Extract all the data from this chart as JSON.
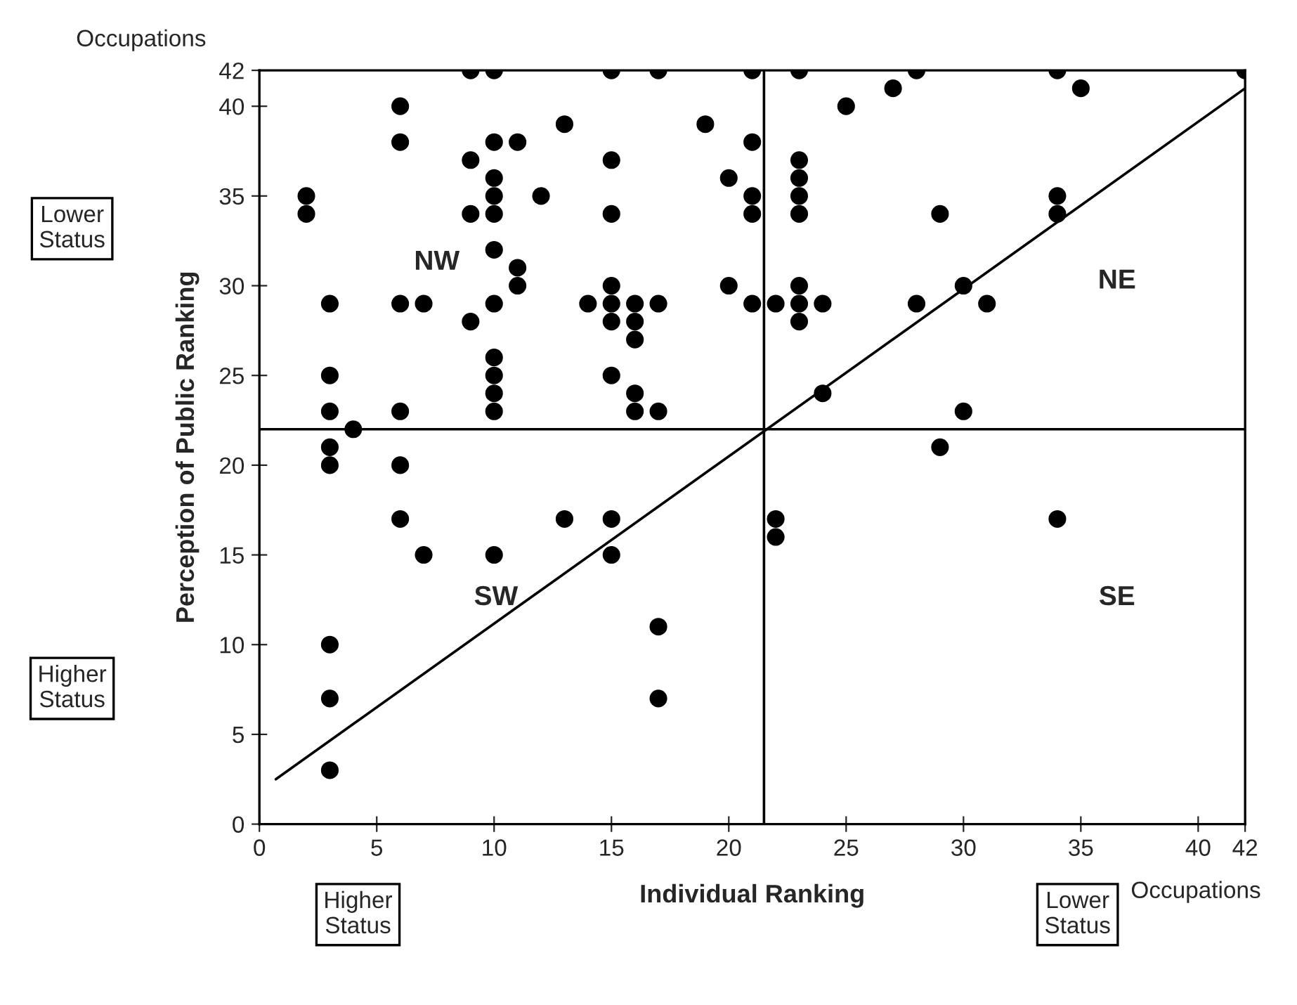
{
  "chart_data": {
    "type": "scatter",
    "xlabel": "Individual Ranking",
    "ylabel": "Perception of Public Ranking",
    "x": [
      9,
      10,
      15,
      17,
      21,
      23,
      28,
      34,
      42,
      27,
      35,
      25,
      23,
      23,
      23,
      23,
      23,
      23,
      23,
      29,
      34,
      34,
      22,
      24,
      28,
      30,
      31,
      24,
      30,
      29,
      6,
      6,
      13,
      19,
      10,
      11,
      21,
      9,
      15,
      10,
      20,
      2,
      2,
      10,
      10,
      12,
      21,
      21,
      9,
      15,
      10,
      11,
      11,
      20,
      15,
      3,
      6,
      7,
      10,
      14,
      15,
      16,
      17,
      21,
      9,
      15,
      16,
      16,
      3,
      15,
      10,
      10,
      10,
      10,
      16,
      3,
      6,
      16,
      17,
      4,
      3,
      3,
      6,
      6,
      13,
      15,
      7,
      10,
      15,
      22,
      22,
      3,
      3,
      17,
      17,
      3,
      34
    ],
    "values": [
      42,
      42,
      42,
      42,
      42,
      42,
      42,
      42,
      42,
      41,
      41,
      40,
      37,
      36,
      35,
      34,
      30,
      29,
      28,
      34,
      35,
      34,
      29,
      29,
      29,
      30,
      29,
      24,
      23,
      21,
      40,
      38,
      39,
      39,
      38,
      38,
      38,
      37,
      37,
      36,
      36,
      35,
      34,
      35,
      34,
      35,
      35,
      34,
      34,
      34,
      32,
      31,
      30,
      30,
      30,
      29,
      29,
      29,
      29,
      29,
      29,
      29,
      29,
      29,
      28,
      28,
      28,
      27,
      25,
      25,
      26,
      25,
      24,
      23,
      24,
      23,
      23,
      23,
      23,
      22,
      21,
      20,
      20,
      17,
      17,
      17,
      15,
      15,
      15,
      17,
      16,
      10,
      7,
      11,
      7,
      3,
      17
    ],
    "color": "#000000",
    "marker": "circle",
    "series": [
      {
        "type": "line",
        "x": [
          0.7,
          42
        ],
        "values": [
          2.5,
          41
        ],
        "color": "#000000",
        "marker": "none"
      }
    ],
    "ref_lines": [
      {
        "axis": "y",
        "value": 22,
        "color": "#000000"
      },
      {
        "axis": "x",
        "value": 21.5,
        "color": "#000000"
      }
    ],
    "xlim": [
      0,
      42
    ],
    "ylim": [
      0,
      42
    ],
    "xticks": [
      0,
      5,
      10,
      15,
      20,
      25,
      30,
      35,
      40,
      42
    ],
    "yticks": [
      0,
      5,
      10,
      15,
      20,
      25,
      30,
      35,
      40,
      42
    ],
    "grid": false,
    "annotations": [
      "Occupations",
      "Occupations",
      "Lower\nStatus",
      "Higher\nStatus",
      "Higher\nStatus",
      "Lower\nStatus",
      "NW",
      "NE",
      "SW",
      "SE"
    ]
  }
}
